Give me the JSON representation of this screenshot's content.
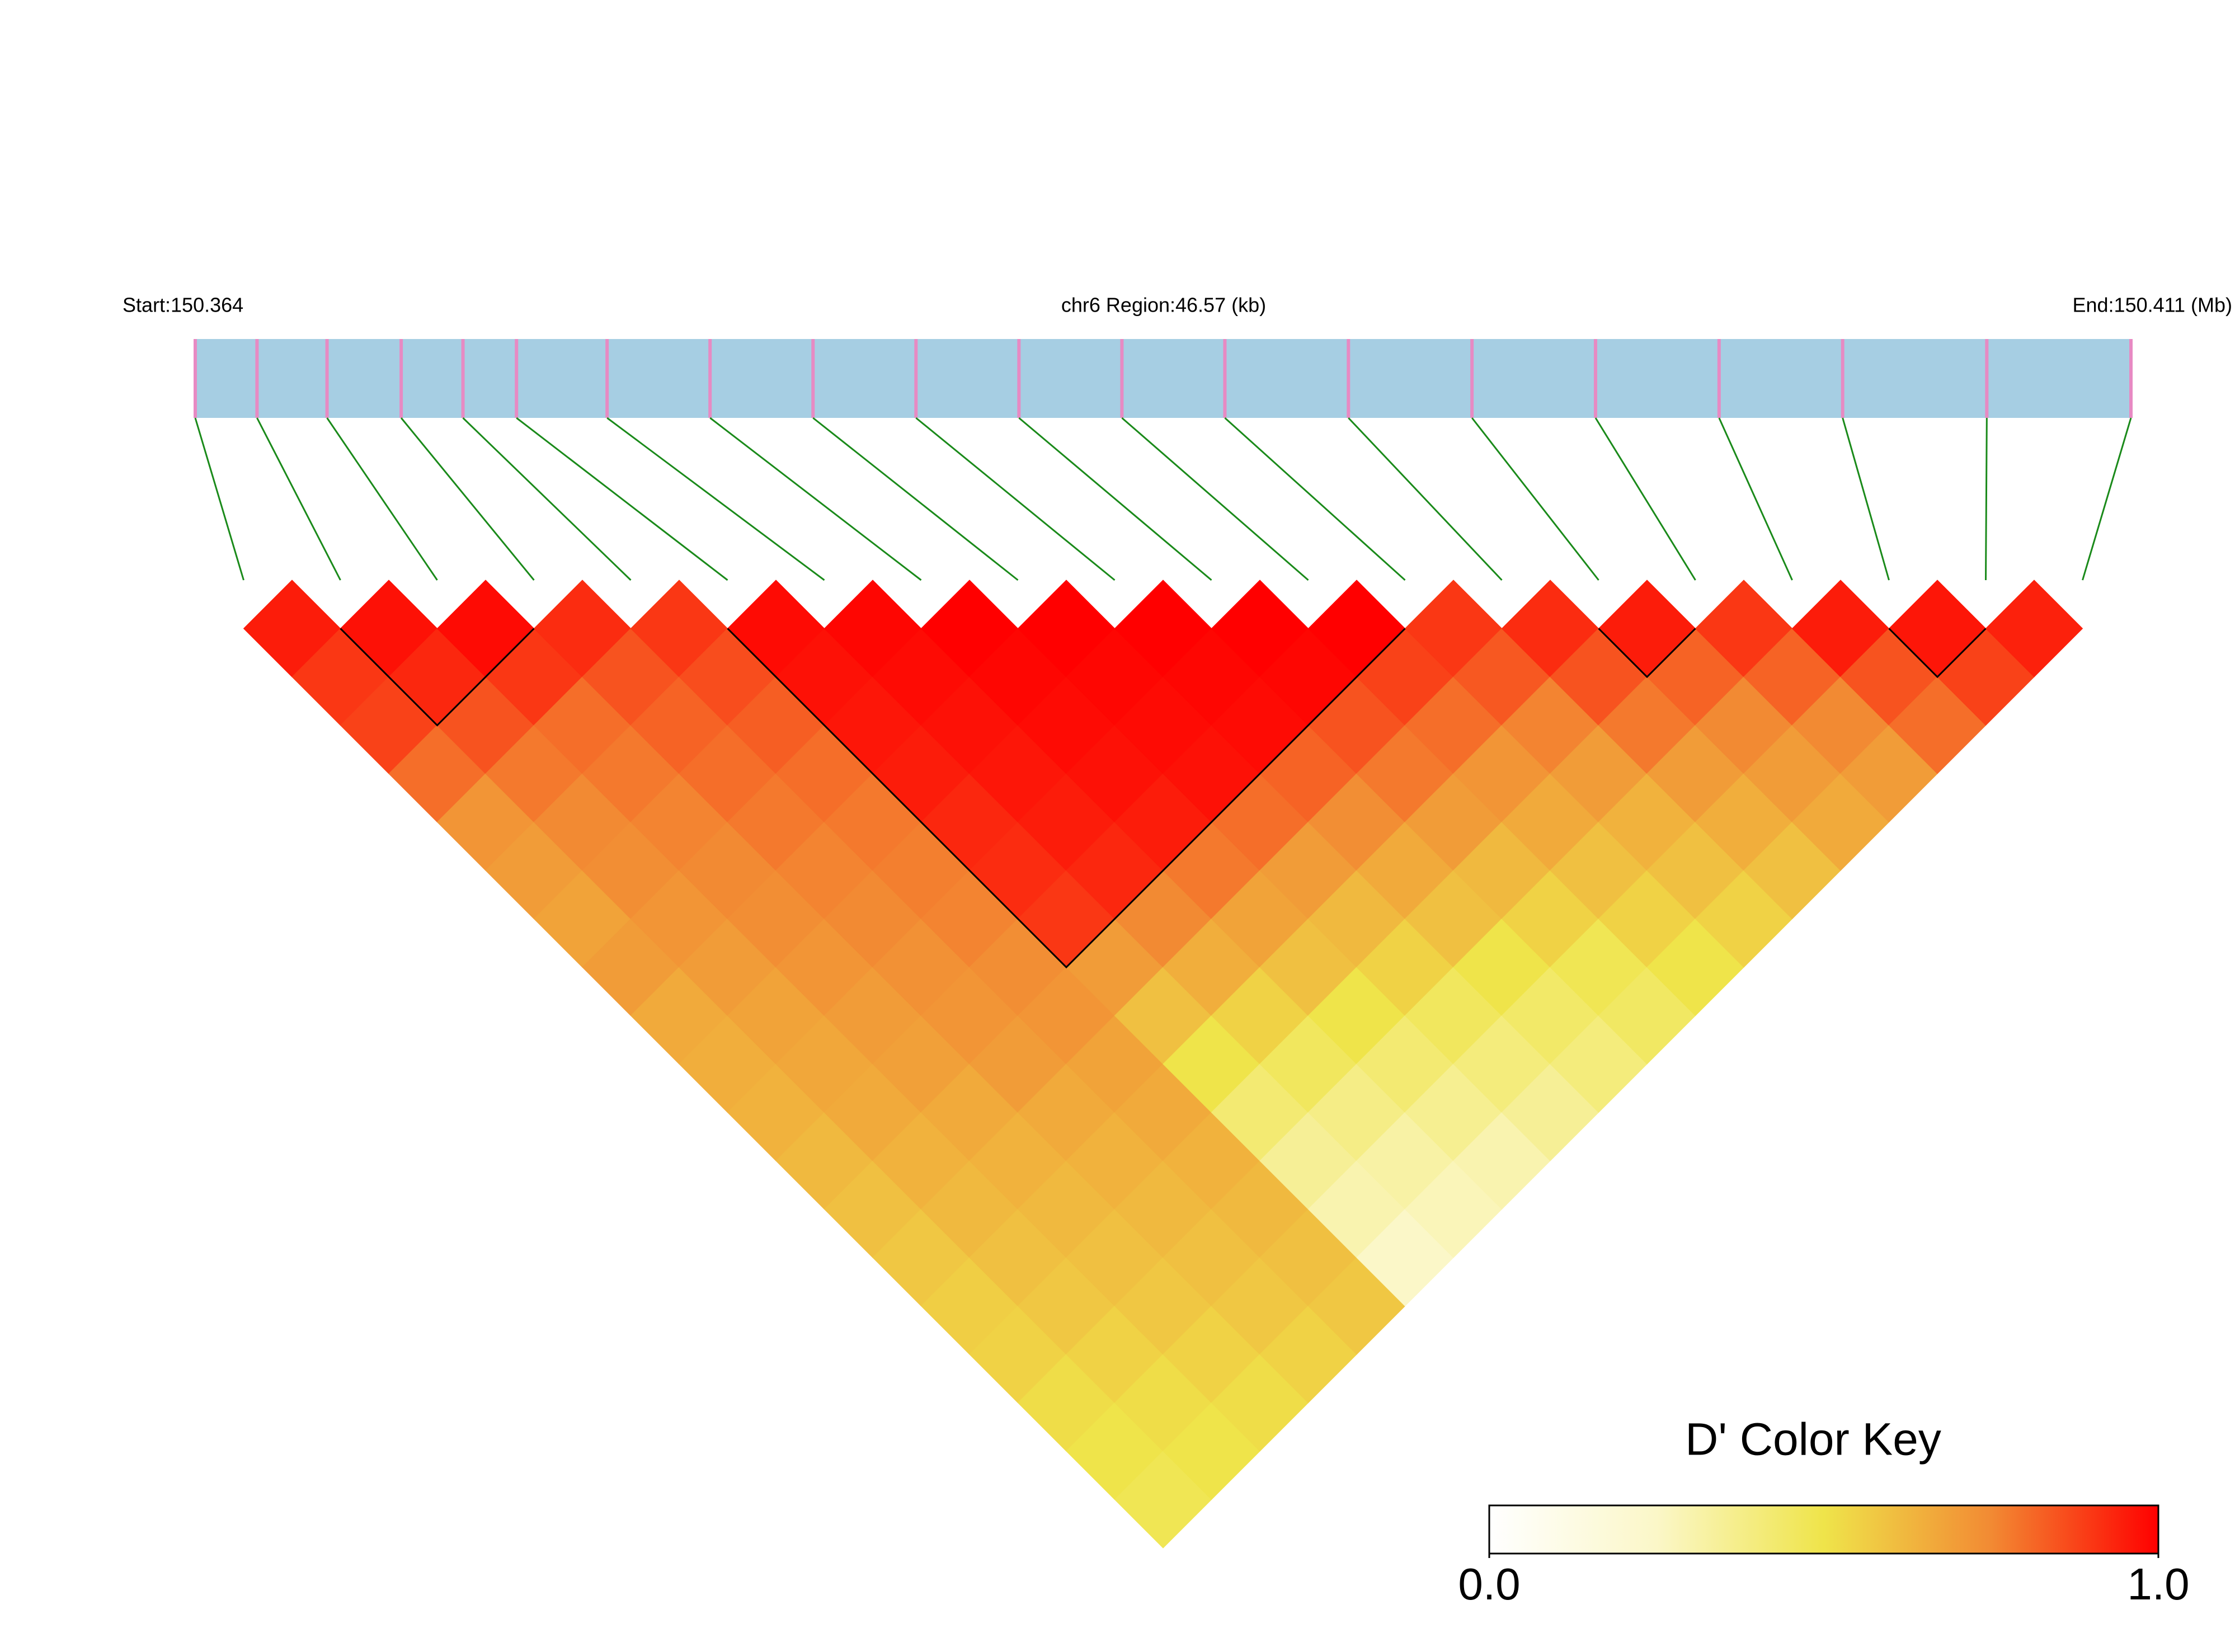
{
  "chart_data": {
    "type": "ld_heatmap",
    "start_label": "Start:150.364",
    "region_label": "chr6 Region:46.57 (kb)",
    "end_label": "End:150.411 (Mb)",
    "xlim": [
      150.364,
      150.411
    ],
    "snp_positions": [
      150.364,
      150.3655,
      150.3672,
      150.369,
      150.3705,
      150.3718,
      150.374,
      150.3765,
      150.379,
      150.3815,
      150.384,
      150.3865,
      150.389,
      150.392,
      150.395,
      150.398,
      150.401,
      150.404,
      150.4075,
      150.411
    ],
    "dprime": [
      [
        0.95
      ],
      [
        0.9,
        0.97
      ],
      [
        0.88,
        0.93,
        0.98
      ],
      [
        0.8,
        0.85,
        0.9,
        0.92
      ],
      [
        0.72,
        0.78,
        0.8,
        0.85,
        0.9
      ],
      [
        0.7,
        0.75,
        0.78,
        0.82,
        0.86,
        0.98
      ],
      [
        0.68,
        0.74,
        0.76,
        0.8,
        0.83,
        0.97,
        0.99
      ],
      [
        0.7,
        0.72,
        0.75,
        0.78,
        0.8,
        0.96,
        0.98,
        1.0
      ],
      [
        0.66,
        0.7,
        0.74,
        0.76,
        0.78,
        0.95,
        0.97,
        0.99,
        1.0
      ],
      [
        0.65,
        0.68,
        0.72,
        0.75,
        0.77,
        0.93,
        0.96,
        0.98,
        0.99,
        1.0
      ],
      [
        0.64,
        0.67,
        0.7,
        0.73,
        0.76,
        0.92,
        0.95,
        0.97,
        0.98,
        0.99,
        1.0
      ],
      [
        0.62,
        0.66,
        0.69,
        0.72,
        0.74,
        0.9,
        0.93,
        0.95,
        0.97,
        0.98,
        0.99,
        1.0
      ],
      [
        0.6,
        0.64,
        0.66,
        0.7,
        0.72,
        0.7,
        0.75,
        0.78,
        0.8,
        0.82,
        0.85,
        0.88,
        0.9
      ],
      [
        0.58,
        0.62,
        0.64,
        0.66,
        0.68,
        0.6,
        0.65,
        0.68,
        0.7,
        0.74,
        0.78,
        0.8,
        0.84,
        0.92
      ],
      [
        0.56,
        0.6,
        0.62,
        0.64,
        0.66,
        0.5,
        0.55,
        0.6,
        0.62,
        0.66,
        0.7,
        0.72,
        0.76,
        0.85,
        0.95
      ],
      [
        0.55,
        0.58,
        0.6,
        0.62,
        0.64,
        0.42,
        0.46,
        0.5,
        0.55,
        0.6,
        0.62,
        0.66,
        0.7,
        0.78,
        0.82,
        0.9
      ],
      [
        0.52,
        0.55,
        0.58,
        0.6,
        0.62,
        0.35,
        0.38,
        0.42,
        0.46,
        0.5,
        0.55,
        0.6,
        0.64,
        0.7,
        0.75,
        0.82,
        0.95
      ],
      [
        0.5,
        0.52,
        0.55,
        0.58,
        0.6,
        0.3,
        0.32,
        0.36,
        0.4,
        0.44,
        0.48,
        0.55,
        0.6,
        0.65,
        0.7,
        0.75,
        0.85,
        0.96
      ],
      [
        0.48,
        0.5,
        0.52,
        0.55,
        0.58,
        0.25,
        0.28,
        0.3,
        0.35,
        0.4,
        0.45,
        0.5,
        0.55,
        0.6,
        0.66,
        0.7,
        0.8,
        0.88,
        0.94
      ]
    ],
    "blocks": [
      [
        1,
        3
      ],
      [
        5,
        12
      ],
      [
        14,
        15
      ],
      [
        17,
        18
      ]
    ],
    "bar_color": "#a6cee3",
    "snp_color": "#e78ac3",
    "link_color": "#1a8a1a",
    "colorbar": {
      "title": "D' Color Key",
      "lim": [
        0,
        1
      ],
      "ticks": [
        {
          "value": 0,
          "label": "0.0"
        },
        {
          "value": 1,
          "label": "1.0"
        }
      ],
      "colors": [
        "#ffffff",
        "#fbf7c8",
        "#efe44a",
        "#f28a33",
        "#ff0000"
      ]
    }
  }
}
